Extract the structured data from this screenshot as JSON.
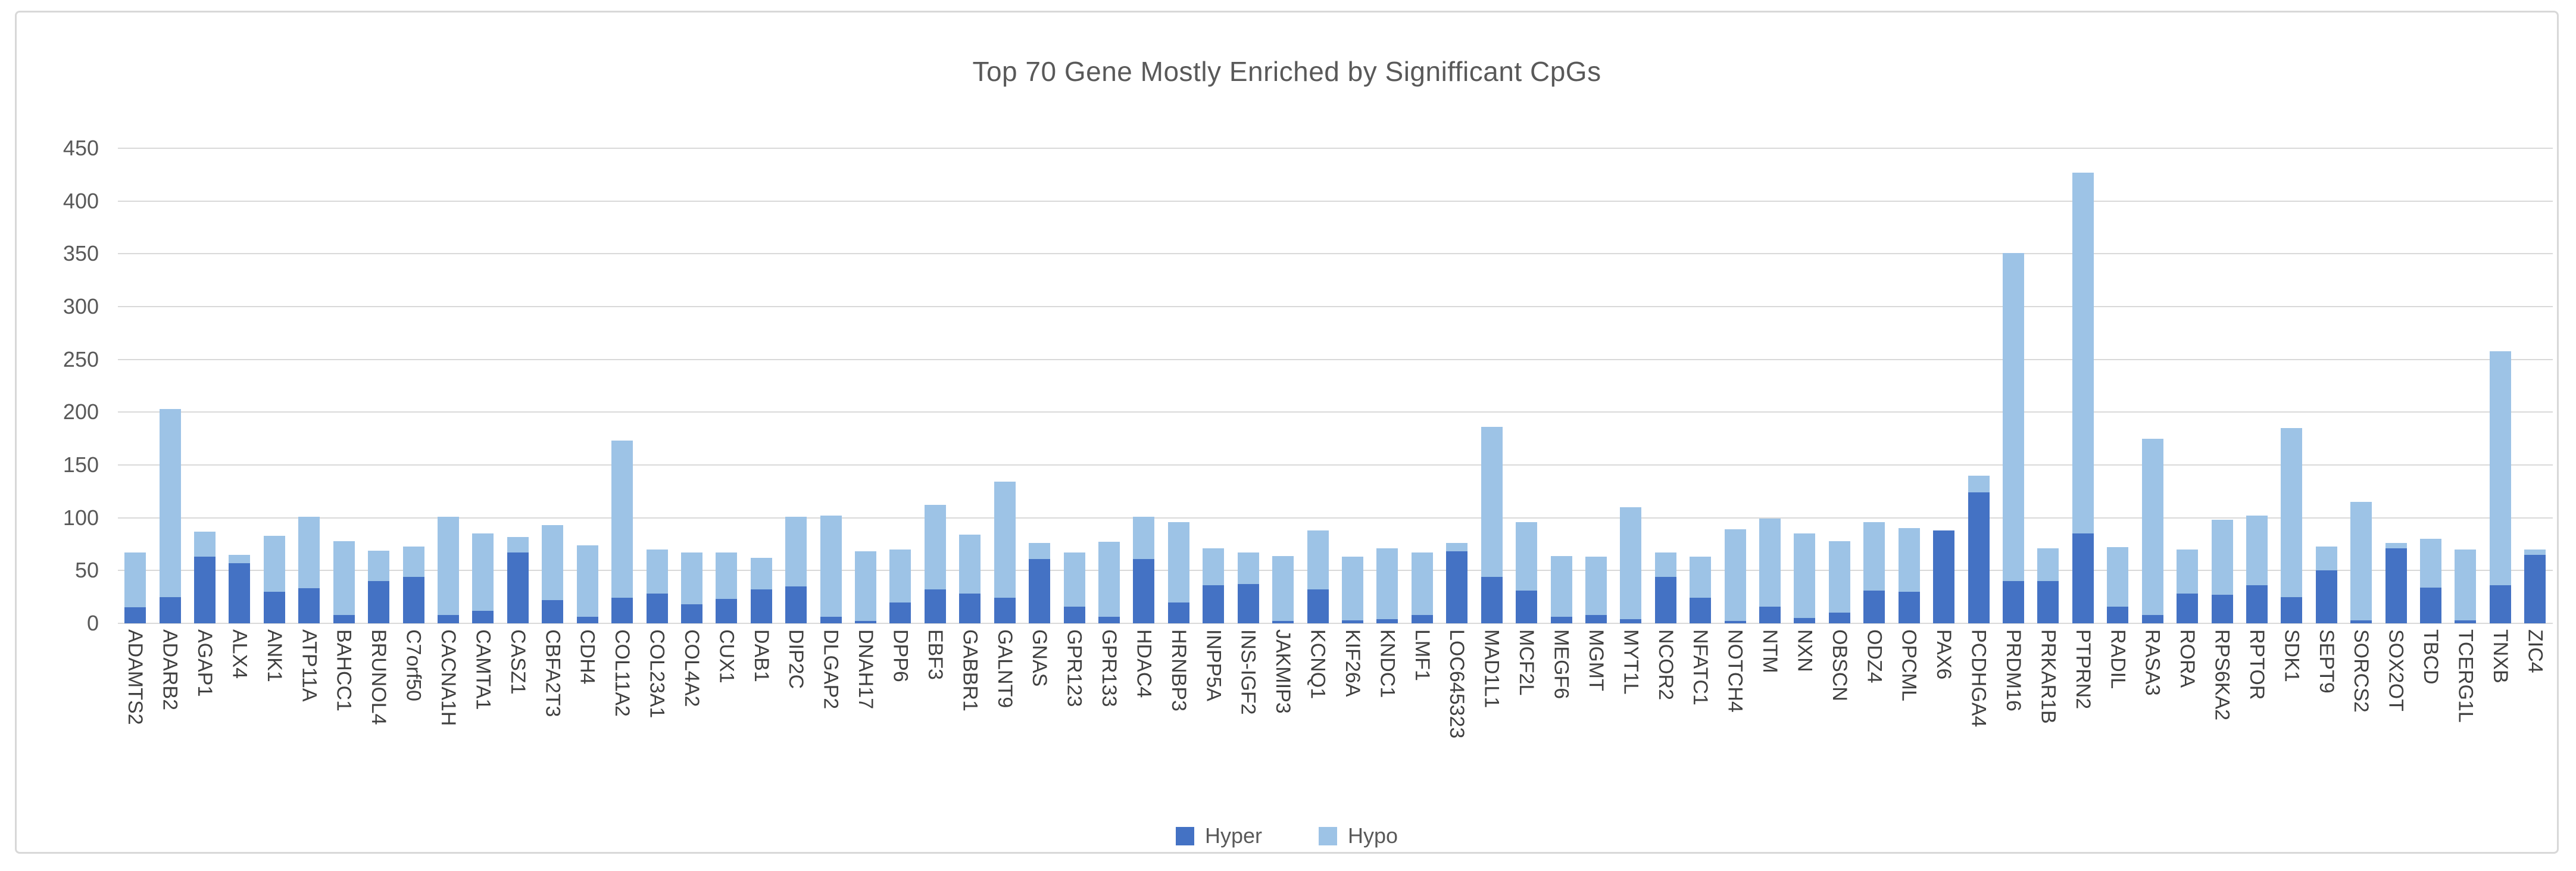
{
  "chart_data": {
    "type": "bar",
    "stacked": true,
    "title": "Top 70 Gene Mostly Enriched by Signifficant CpGs",
    "xlabel": "",
    "ylabel": "",
    "ylim": [
      0,
      450
    ],
    "yticks": [
      0,
      50,
      100,
      150,
      200,
      250,
      300,
      350,
      400,
      450
    ],
    "grid": true,
    "legend_position": "bottom",
    "title_color": "#595959",
    "axis_label_color": "#595959",
    "category_label_color": "#404040",
    "gridline_color": "#d9d9d9",
    "categories": [
      "ADAMTS2",
      "ADARB2",
      "AGAP1",
      "ALX4",
      "ANK1",
      "ATP11A",
      "BAHCC1",
      "BRUNOL4",
      "C7orf50",
      "CACNA1H",
      "CAMTA1",
      "CASZ1",
      "CBFA2T3",
      "CDH4",
      "COL11A2",
      "COL23A1",
      "COL4A2",
      "CUX1",
      "DAB1",
      "DIP2C",
      "DLGAP2",
      "DNAH17",
      "DPP6",
      "EBF3",
      "GABBR1",
      "GALNT9",
      "GNAS",
      "GPR123",
      "GPR133",
      "HDAC4",
      "HRNBP3",
      "INPP5A",
      "INS-IGF2",
      "JAKMIP3",
      "KCNQ1",
      "KIF26A",
      "KNDC1",
      "LMF1",
      "LOC645323",
      "MAD1L1",
      "MCF2L",
      "MEGF6",
      "MGMT",
      "MYT1L",
      "NCOR2",
      "NFATC1",
      "NOTCH4",
      "NTM",
      "NXN",
      "OBSCN",
      "ODZ4",
      "OPCML",
      "PAX6",
      "PCDHGA4",
      "PRDM16",
      "PRKAR1B",
      "PTPRN2",
      "RADIL",
      "RASA3",
      "RORA",
      "RPS6KA2",
      "RPTOR",
      "SDK1",
      "SEPT9",
      "SORCS2",
      "SOX2OT",
      "TBCD",
      "TCERG1L",
      "TNXB",
      "ZIC4"
    ],
    "series": [
      {
        "name": "Hyper",
        "color": "#4472C4",
        "values": [
          15,
          25,
          63,
          57,
          30,
          33,
          8,
          40,
          44,
          8,
          12,
          67,
          22,
          6,
          24,
          28,
          18,
          23,
          32,
          35,
          6,
          2,
          20,
          32,
          28,
          24,
          61,
          16,
          6,
          61,
          20,
          36,
          37,
          2,
          32,
          3,
          4,
          8,
          68,
          44,
          31,
          6,
          8,
          4,
          44,
          24,
          2,
          16,
          5,
          10,
          31,
          30,
          88,
          124,
          40,
          40,
          85,
          16,
          8,
          28,
          27,
          36,
          25,
          50,
          3,
          71,
          34,
          3,
          36,
          65
        ]
      },
      {
        "name": "Hypo",
        "color": "#9DC3E6",
        "values": [
          52,
          178,
          24,
          8,
          53,
          68,
          70,
          29,
          29,
          93,
          73,
          15,
          71,
          68,
          149,
          42,
          49,
          44,
          30,
          66,
          96,
          66,
          50,
          80,
          56,
          110,
          15,
          51,
          71,
          40,
          76,
          35,
          30,
          62,
          56,
          60,
          67,
          59,
          8,
          142,
          65,
          58,
          55,
          106,
          23,
          39,
          87,
          83,
          80,
          68,
          65,
          60,
          0,
          16,
          311,
          31,
          342,
          56,
          167,
          42,
          71,
          66,
          160,
          23,
          112,
          5,
          46,
          67,
          222,
          5
        ]
      }
    ]
  }
}
